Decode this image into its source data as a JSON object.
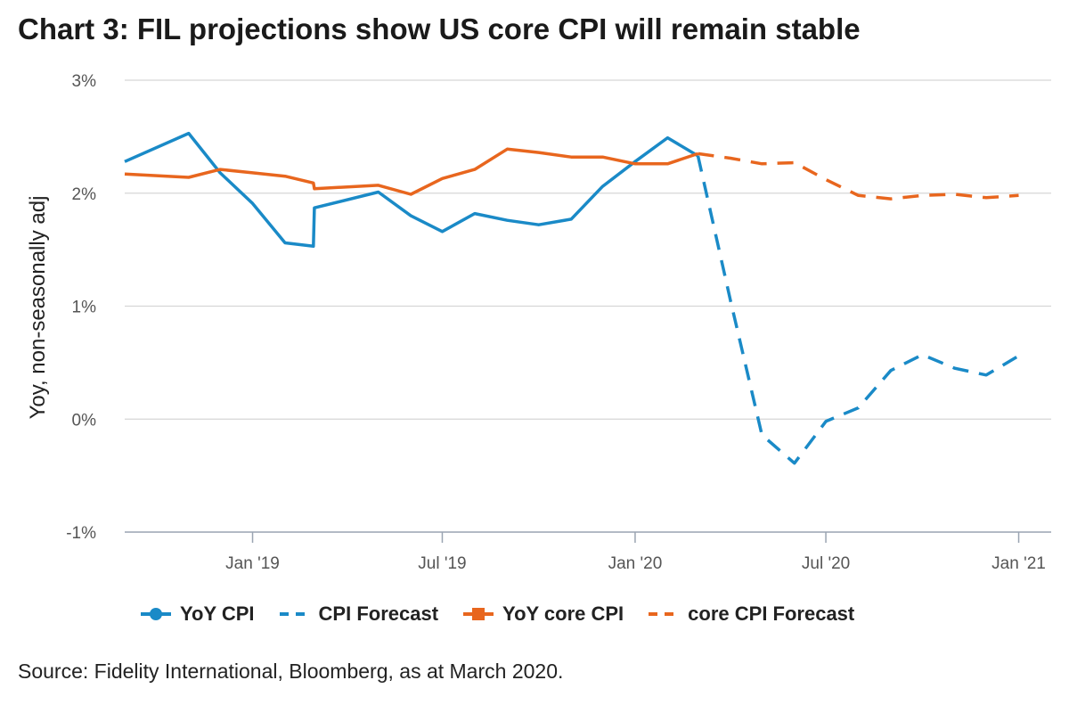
{
  "title": "Chart 3: FIL projections show US core CPI will remain stable",
  "source": "Source: Fidelity International, Bloomberg, as at March 2020.",
  "colors": {
    "blue": "#1a8ac7",
    "orange": "#e8661e",
    "grid": "#d6d6d6",
    "axis": "#9aa4b2"
  },
  "chart_data": {
    "type": "line",
    "ylabel": "Yoy, non-seasonally adj",
    "ylim": [
      -1,
      3
    ],
    "yticks": [
      {
        "value": -1,
        "label": "-1%"
      },
      {
        "value": 0,
        "label": "0%"
      },
      {
        "value": 1,
        "label": "1%"
      },
      {
        "value": 2,
        "label": "2%"
      },
      {
        "value": 3,
        "label": "3%"
      }
    ],
    "xlim": [
      "2018-09-01",
      "2021-02-01"
    ],
    "xticks": [
      {
        "date": "2019-01-01",
        "label": "Jan '19"
      },
      {
        "date": "2019-07-01",
        "label": "Jul '19"
      },
      {
        "date": "2020-01-01",
        "label": "Jan '20"
      },
      {
        "date": "2020-07-01",
        "label": "Jul '20"
      },
      {
        "date": "2021-01-01",
        "label": "Jan '21"
      }
    ],
    "grid": true,
    "legend_position": "bottom",
    "series": [
      {
        "name": "YoY CPI",
        "color": "#1a8ac7",
        "dash": "solid",
        "points": [
          [
            "2018-09-01",
            2.28
          ],
          [
            "2018-11-01",
            2.53
          ],
          [
            "2018-12-01",
            2.18
          ],
          [
            "2019-01-01",
            1.91
          ],
          [
            "2019-02-01",
            1.56
          ],
          [
            "2019-02-28",
            1.53
          ],
          [
            "2019-03-01",
            1.87
          ],
          [
            "2019-05-01",
            2.01
          ],
          [
            "2019-06-01",
            1.8
          ],
          [
            "2019-07-01",
            1.66
          ],
          [
            "2019-08-01",
            1.82
          ],
          [
            "2019-09-01",
            1.76
          ],
          [
            "2019-10-01",
            1.72
          ],
          [
            "2019-11-01",
            1.77
          ],
          [
            "2019-12-01",
            2.06
          ],
          [
            "2020-01-01",
            2.28
          ],
          [
            "2020-02-01",
            2.49
          ],
          [
            "2020-03-01",
            2.33
          ]
        ]
      },
      {
        "name": "CPI Forecast",
        "color": "#1a8ac7",
        "dash": "dashed",
        "points": [
          [
            "2020-03-01",
            2.33
          ],
          [
            "2020-04-01",
            1.05
          ],
          [
            "2020-05-01",
            -0.14
          ],
          [
            "2020-06-01",
            -0.39
          ],
          [
            "2020-07-01",
            -0.02
          ],
          [
            "2020-08-01",
            0.1
          ],
          [
            "2020-09-01",
            0.43
          ],
          [
            "2020-10-01",
            0.57
          ],
          [
            "2020-11-01",
            0.45
          ],
          [
            "2020-12-01",
            0.39
          ],
          [
            "2021-01-01",
            0.56
          ]
        ]
      },
      {
        "name": "YoY core CPI",
        "color": "#e8661e",
        "dash": "solid",
        "points": [
          [
            "2018-09-01",
            2.17
          ],
          [
            "2018-11-01",
            2.14
          ],
          [
            "2018-12-01",
            2.21
          ],
          [
            "2019-01-01",
            2.18
          ],
          [
            "2019-02-01",
            2.15
          ],
          [
            "2019-02-28",
            2.09
          ],
          [
            "2019-03-01",
            2.04
          ],
          [
            "2019-05-01",
            2.07
          ],
          [
            "2019-06-01",
            1.99
          ],
          [
            "2019-07-01",
            2.13
          ],
          [
            "2019-08-01",
            2.21
          ],
          [
            "2019-09-01",
            2.39
          ],
          [
            "2019-10-01",
            2.36
          ],
          [
            "2019-11-01",
            2.32
          ],
          [
            "2019-12-01",
            2.32
          ],
          [
            "2020-01-01",
            2.26
          ],
          [
            "2020-02-01",
            2.26
          ],
          [
            "2020-03-01",
            2.35
          ]
        ]
      },
      {
        "name": "core CPI Forecast",
        "color": "#e8661e",
        "dash": "dashed",
        "points": [
          [
            "2020-03-01",
            2.35
          ],
          [
            "2020-04-01",
            2.31
          ],
          [
            "2020-05-01",
            2.26
          ],
          [
            "2020-06-01",
            2.27
          ],
          [
            "2020-07-01",
            2.12
          ],
          [
            "2020-08-01",
            1.98
          ],
          [
            "2020-09-01",
            1.95
          ],
          [
            "2020-10-01",
            1.98
          ],
          [
            "2020-11-01",
            1.99
          ],
          [
            "2020-12-01",
            1.96
          ],
          [
            "2021-01-01",
            1.98
          ]
        ]
      }
    ]
  }
}
